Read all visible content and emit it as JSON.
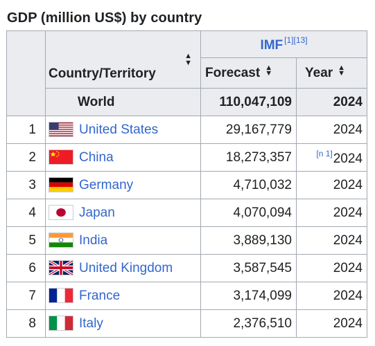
{
  "title": "GDP (million US$) by country",
  "header": {
    "country_label": "Country/Territory",
    "source_label": "IMF",
    "source_refs": "[1][13]",
    "forecast_label": "Forecast",
    "year_label": "Year",
    "sort_icon": "sort-arrows-icon"
  },
  "world": {
    "label": "World",
    "forecast": "110,047,109",
    "year": "2024"
  },
  "rows": [
    {
      "rank": "1",
      "country": "United States",
      "flag": "flag-us",
      "forecast": "29,167,779",
      "year": "2024",
      "note": ""
    },
    {
      "rank": "2",
      "country": "China",
      "flag": "flag-cn",
      "forecast": "18,273,357",
      "year": "2024",
      "note": "[n 1]"
    },
    {
      "rank": "3",
      "country": "Germany",
      "flag": "flag-de",
      "forecast": "4,710,032",
      "year": "2024",
      "note": ""
    },
    {
      "rank": "4",
      "country": "Japan",
      "flag": "flag-jp",
      "forecast": "4,070,094",
      "year": "2024",
      "note": ""
    },
    {
      "rank": "5",
      "country": "India",
      "flag": "flag-in",
      "forecast": "3,889,130",
      "year": "2024",
      "note": ""
    },
    {
      "rank": "6",
      "country": "United Kingdom",
      "flag": "flag-gb",
      "forecast": "3,587,545",
      "year": "2024",
      "note": ""
    },
    {
      "rank": "7",
      "country": "France",
      "flag": "flag-fr",
      "forecast": "3,174,099",
      "year": "2024",
      "note": ""
    },
    {
      "rank": "8",
      "country": "Italy",
      "flag": "flag-it",
      "forecast": "2,376,510",
      "year": "2024",
      "note": ""
    }
  ],
  "colors": {
    "link": "#3366cc",
    "header_bg": "#eaecf0",
    "border": "#a2a9b1"
  }
}
